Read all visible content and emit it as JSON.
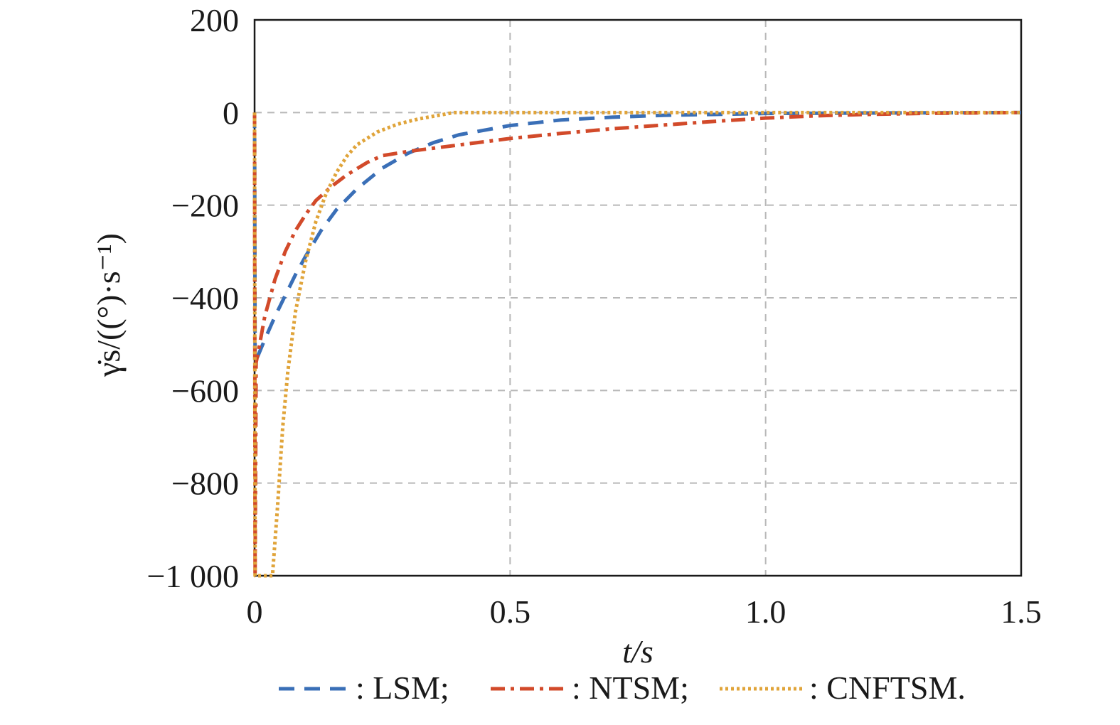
{
  "chart_data": {
    "type": "line",
    "title": "",
    "xlabel": "t/s",
    "ylabel": "γ̇s/((°)·s⁻¹)",
    "xlim": [
      0,
      1.5
    ],
    "ylim": [
      -1000,
      200
    ],
    "xticks": [
      0,
      0.5,
      1.0,
      1.5
    ],
    "xtick_labels": [
      "0",
      "0.5",
      "1.0",
      "1.5"
    ],
    "yticks": [
      200,
      0,
      -200,
      -400,
      -600,
      -800,
      -1000
    ],
    "ytick_labels": [
      "200",
      "0",
      "−200",
      "−400",
      "−600",
      "−800",
      "−1 000"
    ],
    "grid": true,
    "legend_placement": "bottom",
    "series": [
      {
        "name": ": LSM;",
        "color": "#3a6fb7",
        "style": "dashed",
        "x": [
          0,
          0.001,
          0.02,
          0.04,
          0.06,
          0.08,
          0.1,
          0.13,
          0.16,
          0.2,
          0.25,
          0.3,
          0.35,
          0.4,
          0.5,
          0.6,
          0.7,
          0.8,
          0.9,
          1.0,
          1.2,
          1.5
        ],
        "y": [
          0,
          -540,
          -490,
          -440,
          -395,
          -350,
          -310,
          -255,
          -210,
          -165,
          -120,
          -88,
          -65,
          -48,
          -28,
          -16,
          -10,
          -6,
          -4,
          -2,
          -1,
          0
        ]
      },
      {
        "name": ": NTSM;",
        "color": "#d24a2a",
        "style": "dashdot",
        "x": [
          0,
          0.001,
          0.003,
          0.01,
          0.02,
          0.04,
          0.06,
          0.08,
          0.1,
          0.12,
          0.15,
          0.18,
          0.22,
          0.25,
          0.3,
          0.4,
          0.5,
          0.6,
          0.7,
          0.8,
          0.9,
          1.0,
          1.1,
          1.2,
          1.3,
          1.5
        ],
        "y": [
          0,
          -1000,
          -540,
          -500,
          -440,
          -360,
          -300,
          -255,
          -220,
          -190,
          -160,
          -135,
          -108,
          -93,
          -84,
          -70,
          -56,
          -45,
          -35,
          -27,
          -19,
          -12,
          -7,
          -4,
          -2,
          0
        ]
      },
      {
        "name": ": CNFTSM.",
        "color": "#e0a43a",
        "style": "dotted",
        "x": [
          0,
          0.001,
          0.003,
          0.035,
          0.045,
          0.055,
          0.065,
          0.08,
          0.1,
          0.12,
          0.14,
          0.16,
          0.18,
          0.2,
          0.24,
          0.28,
          0.32,
          0.36,
          0.39,
          0.45,
          0.6,
          1.0,
          1.5
        ],
        "y": [
          0,
          -1000,
          -1000,
          -1000,
          -850,
          -680,
          -560,
          -430,
          -320,
          -235,
          -175,
          -130,
          -95,
          -70,
          -42,
          -25,
          -14,
          -6,
          0,
          0,
          0,
          0,
          0
        ]
      }
    ]
  }
}
